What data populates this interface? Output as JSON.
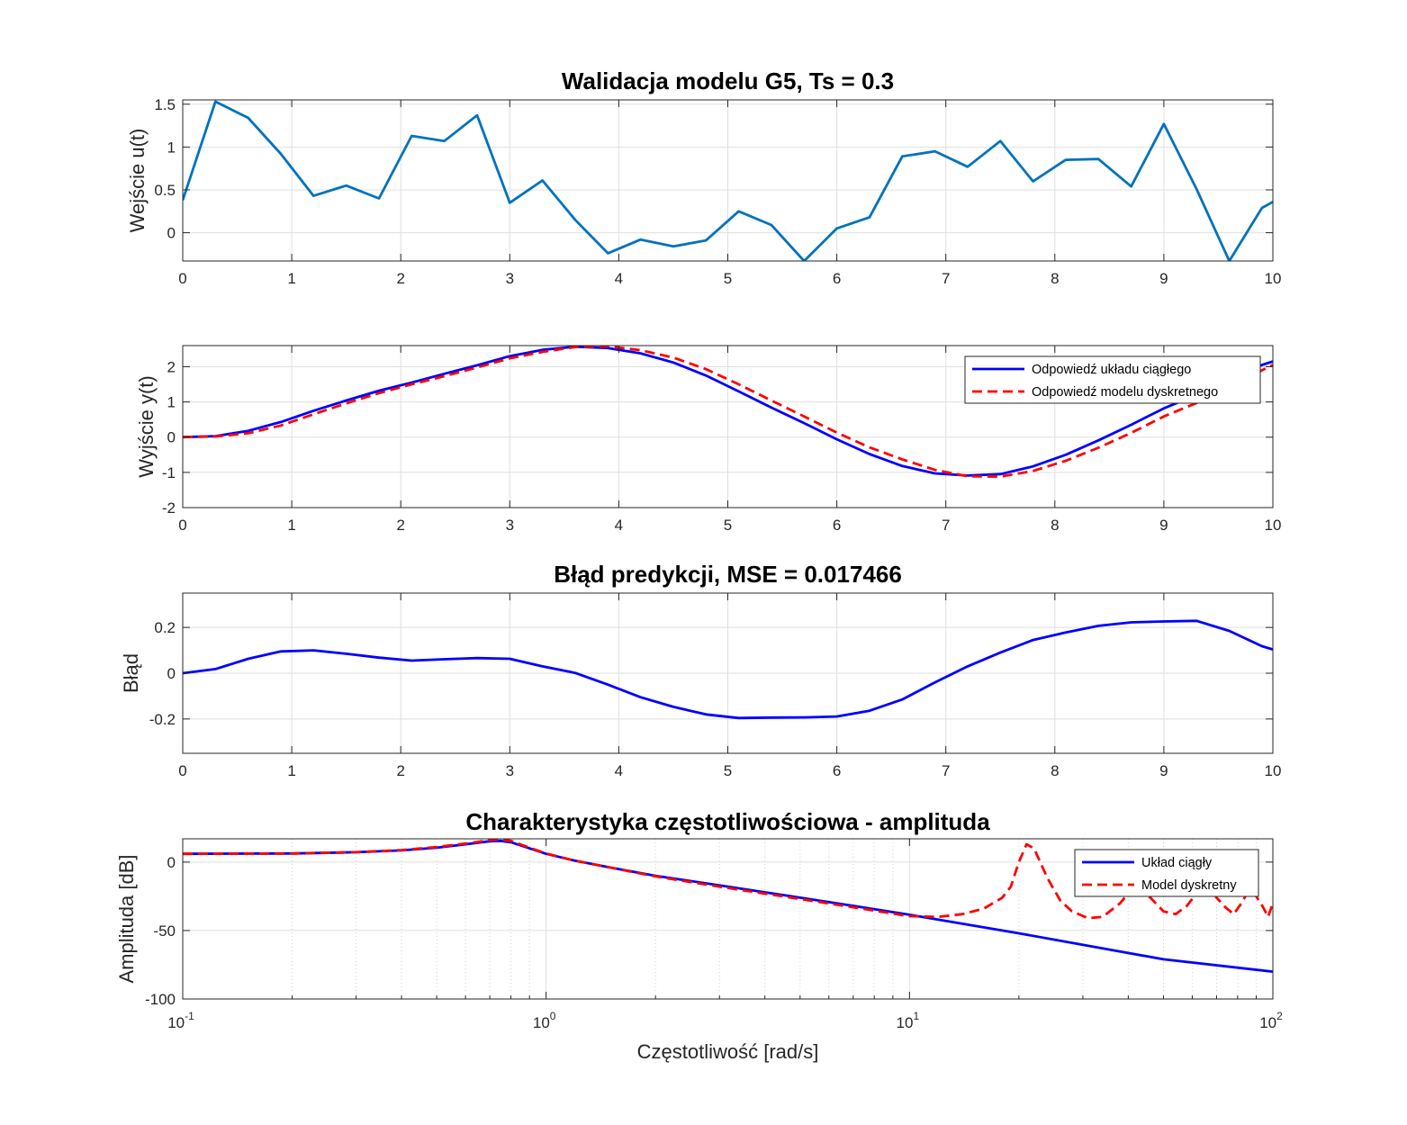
{
  "chart_data": [
    {
      "type": "line",
      "title": "Walidacja modelu G5, Ts = 0.3",
      "xlabel": "",
      "ylabel": "Wejście u(t)",
      "xlim": [
        0,
        10
      ],
      "ylim": [
        -0.33,
        1.55
      ],
      "xticks": [
        "0",
        "1",
        "2",
        "3",
        "4",
        "5",
        "6",
        "7",
        "8",
        "9",
        "10"
      ],
      "yticks": [
        {
          "v": 1.5,
          "label": "1.5"
        },
        {
          "v": 1,
          "label": "1"
        },
        {
          "v": 0.5,
          "label": "0.5"
        },
        {
          "v": 0,
          "label": "0"
        }
      ],
      "grid": true,
      "series": [
        {
          "color": "#0072BD",
          "style": "solid",
          "x": [
            0,
            0.3,
            0.6,
            0.9,
            1.2,
            1.5,
            1.8,
            2.1,
            2.4,
            2.7,
            3.0,
            3.3,
            3.6,
            3.9,
            4.2,
            4.5,
            4.8,
            5.1,
            5.4,
            5.7,
            6.0,
            6.3,
            6.6,
            6.9,
            7.2,
            7.5,
            7.8,
            8.1,
            8.4,
            8.7,
            9.0,
            9.3,
            9.6,
            9.9,
            10
          ],
          "y": [
            0.38,
            1.53,
            1.34,
            0.92,
            0.43,
            0.55,
            0.4,
            1.13,
            1.07,
            1.37,
            0.35,
            0.61,
            0.15,
            -0.24,
            -0.08,
            -0.16,
            -0.09,
            0.25,
            0.09,
            -0.33,
            0.05,
            0.18,
            0.89,
            0.95,
            0.77,
            1.07,
            0.6,
            0.85,
            0.86,
            0.54,
            1.27,
            0.51,
            -0.33,
            0.29,
            0.36
          ]
        }
      ]
    },
    {
      "type": "line",
      "title": "",
      "xlabel": "",
      "ylabel": "Wyjście y(t)",
      "xlim": [
        0,
        10
      ],
      "ylim": [
        -2,
        2.6
      ],
      "xticks": [
        "0",
        "1",
        "2",
        "3",
        "4",
        "5",
        "6",
        "7",
        "8",
        "9",
        "10"
      ],
      "yticks": [
        {
          "v": 2,
          "label": "2"
        },
        {
          "v": 1,
          "label": "1"
        },
        {
          "v": 0,
          "label": "0"
        },
        {
          "v": -1,
          "label": "-1"
        },
        {
          "v": -2,
          "label": "-2"
        }
      ],
      "grid": true,
      "legend": "top-right",
      "series": [
        {
          "name": "Odpowiedź układu ciągłego",
          "color": "#0000FF",
          "style": "solid",
          "x": [
            0,
            0.3,
            0.6,
            0.9,
            1.2,
            1.5,
            1.8,
            2.1,
            2.4,
            2.7,
            3.0,
            3.3,
            3.6,
            3.9,
            4.2,
            4.5,
            4.8,
            5.1,
            5.4,
            5.7,
            6.0,
            6.3,
            6.6,
            6.9,
            7.2,
            7.5,
            7.8,
            8.1,
            8.4,
            8.7,
            9.0,
            9.3,
            9.6,
            9.9,
            10
          ],
          "y": [
            0,
            0.03,
            0.18,
            0.43,
            0.75,
            1.04,
            1.32,
            1.55,
            1.8,
            2.04,
            2.3,
            2.48,
            2.57,
            2.53,
            2.38,
            2.12,
            1.75,
            1.3,
            0.84,
            0.4,
            -0.06,
            -0.48,
            -0.82,
            -1.03,
            -1.09,
            -1.05,
            -0.83,
            -0.5,
            -0.09,
            0.35,
            0.82,
            1.2,
            1.6,
            2.05,
            2.15
          ]
        },
        {
          "name": "Odpowiedź modelu dyskretnego",
          "color": "#FF0000",
          "style": "dashed",
          "x": [
            0,
            0.3,
            0.6,
            0.9,
            1.2,
            1.5,
            1.8,
            2.1,
            2.4,
            2.7,
            3.0,
            3.3,
            3.6,
            3.9,
            4.2,
            4.5,
            4.8,
            5.1,
            5.4,
            5.7,
            6.0,
            6.3,
            6.6,
            6.9,
            7.2,
            7.5,
            7.8,
            8.1,
            8.4,
            8.7,
            9.0,
            9.3,
            9.6,
            9.9,
            10
          ],
          "y": [
            0,
            0.02,
            0.11,
            0.33,
            0.65,
            0.96,
            1.25,
            1.5,
            1.73,
            1.98,
            2.24,
            2.42,
            2.56,
            2.58,
            2.47,
            2.26,
            1.93,
            1.5,
            1.04,
            0.59,
            0.13,
            -0.29,
            -0.63,
            -0.93,
            -1.11,
            -1.12,
            -0.96,
            -0.67,
            -0.3,
            0.12,
            0.59,
            0.97,
            1.37,
            1.9,
            2.05
          ]
        }
      ]
    },
    {
      "type": "line",
      "title": "Błąd predykcji, MSE = 0.017466",
      "xlabel": "",
      "ylabel": "Błąd",
      "xlim": [
        0,
        10
      ],
      "ylim": [
        -0.35,
        0.35
      ],
      "xticks": [
        "0",
        "1",
        "2",
        "3",
        "4",
        "5",
        "6",
        "7",
        "8",
        "9",
        "10"
      ],
      "yticks": [
        {
          "v": 0.2,
          "label": "0.2"
        },
        {
          "v": 0,
          "label": "0"
        },
        {
          "v": -0.2,
          "label": "-0.2"
        }
      ],
      "grid": true,
      "series": [
        {
          "color": "#0000FF",
          "style": "solid",
          "x": [
            0,
            0.3,
            0.6,
            0.9,
            1.2,
            1.5,
            1.8,
            2.1,
            2.4,
            2.7,
            3.0,
            3.3,
            3.6,
            3.9,
            4.2,
            4.5,
            4.8,
            5.1,
            5.4,
            5.7,
            6.0,
            6.3,
            6.6,
            6.9,
            7.2,
            7.5,
            7.8,
            8.1,
            8.4,
            8.7,
            9.0,
            9.3,
            9.6,
            9.9,
            10
          ],
          "y": [
            0,
            0.018,
            0.063,
            0.095,
            0.1,
            0.085,
            0.068,
            0.055,
            0.061,
            0.066,
            0.063,
            0.03,
            0.001,
            -0.05,
            -0.105,
            -0.147,
            -0.18,
            -0.196,
            -0.194,
            -0.193,
            -0.189,
            -0.164,
            -0.115,
            -0.04,
            0.03,
            0.09,
            0.145,
            0.178,
            0.207,
            0.222,
            0.226,
            0.229,
            0.185,
            0.118,
            0.104
          ]
        }
      ]
    },
    {
      "type": "line",
      "title": "Charakterystyka częstotliwościowa - amplituda",
      "xlabel": "Częstotliwość [rad/s]",
      "ylabel": "Amplituda [dB]",
      "xscale": "log",
      "xlim": [
        0.1,
        100
      ],
      "ylim": [
        -100,
        17
      ],
      "xticks": [
        {
          "v": 0.1,
          "base": "10",
          "exp": "-1"
        },
        {
          "v": 1,
          "base": "10",
          "exp": "0"
        },
        {
          "v": 10,
          "base": "10",
          "exp": "1"
        },
        {
          "v": 100,
          "base": "10",
          "exp": "2"
        }
      ],
      "yticks": [
        {
          "v": 0,
          "label": "0"
        },
        {
          "v": -50,
          "label": "-50"
        },
        {
          "v": -100,
          "label": "-100"
        }
      ],
      "grid": true,
      "legend": "top-right",
      "series": [
        {
          "name": "Układ ciągły",
          "color": "#0000FF",
          "style": "solid",
          "x": [
            0.1,
            0.2,
            0.3,
            0.4,
            0.5,
            0.6,
            0.7,
            0.75,
            0.8,
            0.9,
            1.0,
            1.2,
            1.5,
            2,
            3,
            5,
            7,
            10,
            20,
            50,
            100
          ],
          "y": [
            6,
            6.3,
            7.2,
            8.5,
            10.5,
            13,
            15.2,
            15.5,
            14.5,
            10,
            6,
            1,
            -4,
            -10,
            -17,
            -26,
            -32,
            -38.5,
            -52,
            -71,
            -80
          ]
        },
        {
          "name": "Model dyskretny",
          "color": "#FF0000",
          "style": "dashed",
          "x": [
            0.1,
            0.2,
            0.3,
            0.4,
            0.5,
            0.6,
            0.7,
            0.75,
            0.8,
            0.9,
            1.0,
            1.2,
            1.5,
            2,
            3,
            5,
            7,
            10,
            12,
            14,
            16,
            18,
            19,
            20,
            21,
            22,
            24,
            26,
            28,
            31,
            34,
            38,
            42,
            46,
            50,
            54,
            58,
            62,
            66,
            70,
            74,
            78,
            82,
            86,
            90,
            94,
            97,
            100
          ],
          "y": [
            6,
            6.3,
            7.2,
            8.8,
            11,
            13.5,
            16,
            16.5,
            15.5,
            10.5,
            6.2,
            1,
            -4,
            -10.5,
            -18,
            -27,
            -33,
            -39.5,
            -40,
            -38,
            -34,
            -26,
            -18,
            0,
            13,
            10,
            -12,
            -28,
            -36,
            -41,
            -40,
            -30,
            -16,
            -26,
            -36,
            -38,
            -32,
            -22,
            -15,
            -26,
            -33,
            -38,
            -30,
            -20,
            -25,
            -33,
            -40,
            -30
          ]
        }
      ]
    }
  ]
}
